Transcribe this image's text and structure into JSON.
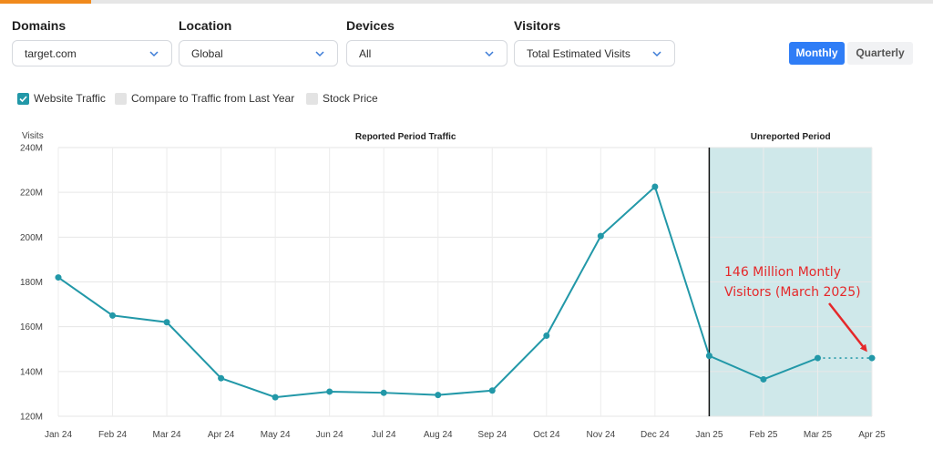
{
  "filters": {
    "domains": {
      "label": "Domains",
      "value": "target.com"
    },
    "location": {
      "label": "Location",
      "value": "Global"
    },
    "devices": {
      "label": "Devices",
      "value": "All"
    },
    "visitors": {
      "label": "Visitors",
      "value": "Total Estimated Visits"
    }
  },
  "period_toggle": {
    "monthly": "Monthly",
    "quarterly": "Quarterly",
    "selected": "Monthly"
  },
  "legend": {
    "website_traffic": {
      "label": "Website Traffic",
      "checked": true
    },
    "compare_last_year": {
      "label": "Compare to Traffic from Last Year",
      "checked": false
    },
    "stock_price": {
      "label": "Stock Price",
      "checked": false
    }
  },
  "colors": {
    "line": "#2298a8",
    "unreported_fill": "#cfe8ea",
    "primary": "#2f7df6",
    "annotation": "#e5282a",
    "accent": "#f08a1c"
  },
  "chart_data": {
    "type": "line",
    "ylabel": "Visits",
    "ylim": [
      120,
      240
    ],
    "yticks": [
      120,
      140,
      160,
      180,
      200,
      220,
      240
    ],
    "ytick_labels": [
      "120M",
      "140M",
      "160M",
      "180M",
      "200M",
      "220M",
      "240M"
    ],
    "categories": [
      "Jan 24",
      "Feb 24",
      "Mar 24",
      "Apr 24",
      "May 24",
      "Jun 24",
      "Jul 24",
      "Aug 24",
      "Sep 24",
      "Oct 24",
      "Nov 24",
      "Dec 24",
      "Jan 25",
      "Feb 25",
      "Mar 25",
      "Apr 25"
    ],
    "series": [
      {
        "name": "Website Traffic",
        "values": [
          182,
          165,
          162,
          137,
          128.5,
          131,
          130.5,
          129.5,
          131.5,
          156,
          200.5,
          222.5,
          147,
          136.5,
          146,
          146
        ],
        "dotted_from_index": 14
      }
    ],
    "reported_label": "Reported Period Traffic",
    "unreported_label": "Unreported Period",
    "unreported_start": "Jan 25",
    "annotation": {
      "lines": [
        "146 Million Montly",
        "Visitors (March 2025)"
      ],
      "points_to": "Apr 25"
    }
  }
}
